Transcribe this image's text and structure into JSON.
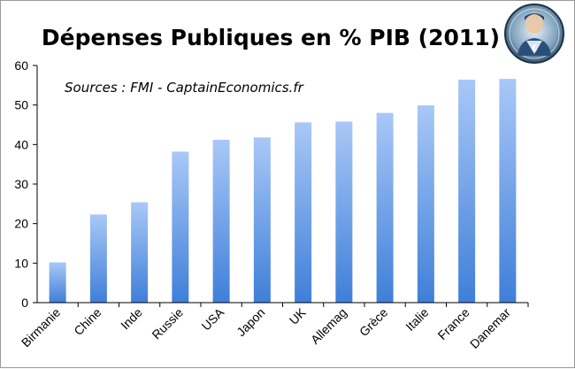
{
  "chart_data": {
    "type": "bar",
    "title": "Dépenses Publiques en % PIB (2011)",
    "annotation": "Sources : FMI  -  CaptainEconomics.fr",
    "categories": [
      "Birmanie",
      "Chine",
      "Inde",
      "Russie",
      "USA",
      "Japon",
      "UK",
      "Allemag",
      "Grèce",
      "Italie",
      "France",
      "Danemar"
    ],
    "values": [
      10.2,
      22.3,
      25.4,
      38.2,
      41.2,
      41.8,
      45.6,
      45.8,
      48.0,
      49.9,
      56.4,
      56.6
    ],
    "xlabel": "",
    "ylabel": "",
    "ylim": [
      0,
      60
    ],
    "yticks": [
      0,
      10,
      20,
      30,
      40,
      50,
      60
    ],
    "grid": false,
    "legend": "none",
    "colors": {
      "bar_top": "#a9c8f7",
      "bar_bottom": "#3f7fd9",
      "axis": "#000000"
    }
  },
  "logo": {
    "icon": "captain-economics-superhero-logo"
  }
}
